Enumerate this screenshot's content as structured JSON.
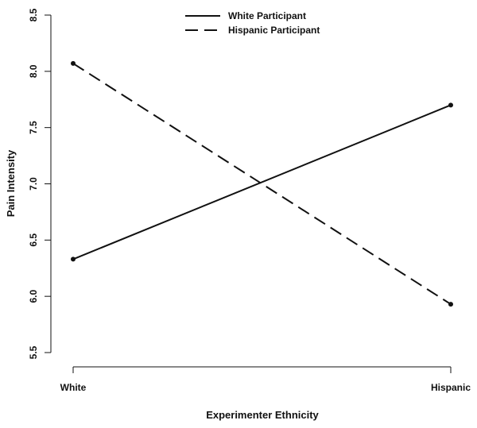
{
  "chart_data": {
    "type": "line",
    "title": "",
    "xlabel": "Experimenter Ethnicity",
    "ylabel": "Pain Intensity",
    "categories": [
      "White",
      "Hispanic"
    ],
    "ylim": [
      5.5,
      8.5
    ],
    "yticks": [
      "5.5",
      "6.0",
      "6.5",
      "7.0",
      "7.5",
      "8.0",
      "8.5"
    ],
    "grid": false,
    "legend_position": "top-center",
    "series": [
      {
        "name": "White Participant",
        "values": [
          6.33,
          7.7
        ],
        "line_style": "solid",
        "color": "#111111"
      },
      {
        "name": "Hispanic Participant",
        "values": [
          8.07,
          5.93
        ],
        "line_style": "dashed",
        "color": "#111111"
      }
    ]
  }
}
